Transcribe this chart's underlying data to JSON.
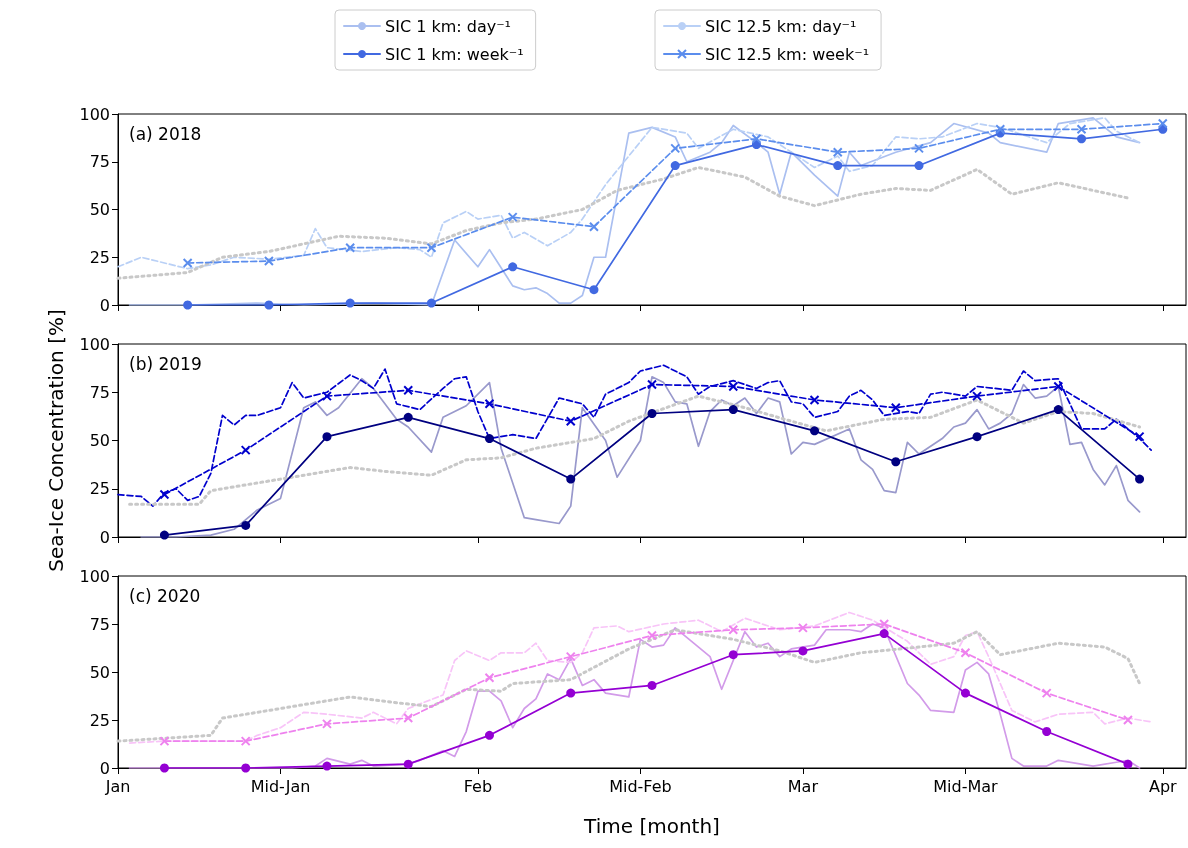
{
  "chart_data": [
    {
      "type": "line",
      "title": "(a) 2018",
      "legend": "top",
      "tick_labels": "y",
      "xlim": [
        "--01-01",
        "--04-03"
      ],
      "xticks": [
        {
          "value": "--01-01",
          "label": "Jan"
        },
        {
          "value": "--01-15",
          "label": "Mid-Jan"
        },
        {
          "value": "--02-01",
          "label": "Feb"
        },
        {
          "value": "--02-15",
          "label": "Mid-Feb"
        },
        {
          "value": "--03-01",
          "label": "Mar"
        },
        {
          "value": "--03-15",
          "label": "Mid-Mar"
        },
        {
          "value": "--04-01",
          "label": "Apr"
        }
      ],
      "ylim": [
        0,
        100
      ],
      "yticks": [
        0,
        25,
        50,
        75,
        100
      ],
      "series": [
        {
          "name": "SIC 1 km: day⁻¹",
          "color": "#aabff0",
          "line_style": "solid",
          "marker": "none",
          "x": [
            "--01-02",
            "--01-07",
            "--01-13",
            "--01-17",
            "--01-23",
            "--01-28",
            "--01-30",
            "--02-01",
            "--02-02",
            "--02-04",
            "--02-05",
            "--02-06",
            "--02-07",
            "--02-08",
            "--02-09",
            "--02-10",
            "--02-11",
            "--02-12",
            "--02-14",
            "--02-16",
            "--02-18",
            "--02-19",
            "--02-21",
            "--02-22",
            "--02-23",
            "--02-25",
            "--02-26",
            "--02-27",
            "--02-28",
            "--03-02",
            "--03-04",
            "--03-05",
            "--03-06",
            "--03-09",
            "--03-12",
            "--03-14",
            "--03-17",
            "--03-18",
            "--03-22",
            "--03-23",
            "--03-26",
            "--03-28",
            "--03-30"
          ],
          "values": [
            0,
            0,
            1,
            0,
            1,
            0,
            34,
            20,
            29,
            10,
            8,
            9,
            6,
            1,
            1,
            5,
            25,
            25,
            90,
            93,
            88,
            75,
            80,
            85,
            94,
            85,
            80,
            58,
            80,
            68,
            57,
            80,
            73,
            80,
            85,
            95,
            90,
            85,
            80,
            95,
            98,
            88,
            85
          ]
        },
        {
          "name": "SIC 1 km: week⁻¹",
          "color": "#4169e1",
          "line_style": "solid",
          "marker": "circle",
          "x": [
            "--01-07",
            "--01-14",
            "--01-21",
            "--01-28",
            "--02-04",
            "--02-11",
            "--02-18",
            "--02-25",
            "--03-04",
            "--03-11",
            "--03-18",
            "--03-25",
            "--04-01"
          ],
          "values": [
            0,
            0,
            1,
            1,
            20,
            8,
            73,
            84,
            73,
            73,
            90,
            87,
            92
          ]
        },
        {
          "name": "SIC 12.5 km: day⁻¹",
          "color": "#b9d0f6",
          "line_style": "dashed",
          "marker": "none",
          "x": [
            "--01-01",
            "--01-03",
            "--01-05",
            "--01-07",
            "--01-09",
            "--01-11",
            "--01-14",
            "--01-17",
            "--01-18",
            "--01-19",
            "--01-22",
            "--01-25",
            "--01-27",
            "--01-28",
            "--01-29",
            "--01-31",
            "--02-01",
            "--02-03",
            "--02-04",
            "--02-05",
            "--02-07",
            "--02-09",
            "--02-10",
            "--02-12",
            "--02-14",
            "--02-16",
            "--02-19",
            "--02-20",
            "--02-23",
            "--02-26",
            "--02-28",
            "--03-02",
            "--03-04",
            "--03-05",
            "--03-07",
            "--03-09",
            "--03-11",
            "--03-13",
            "--03-16",
            "--03-18",
            "--03-22",
            "--03-24",
            "--03-27",
            "--03-28",
            "--03-30"
          ],
          "values": [
            20,
            25,
            22,
            19,
            21,
            25,
            24,
            26,
            40,
            30,
            28,
            30,
            29,
            25,
            43,
            49,
            45,
            47,
            35,
            38,
            31,
            38,
            45,
            63,
            78,
            93,
            90,
            82,
            92,
            88,
            80,
            72,
            78,
            70,
            73,
            88,
            87,
            88,
            95,
            93,
            85,
            95,
            98,
            91,
            85
          ]
        },
        {
          "name": "SIC 12.5 km: week⁻¹",
          "color": "#5b8ded",
          "line_style": "dashed",
          "marker": "cross",
          "x": [
            "--01-07",
            "--01-14",
            "--01-21",
            "--01-28",
            "--02-04",
            "--02-11",
            "--02-18",
            "--02-25",
            "--03-04",
            "--03-11",
            "--03-18",
            "--03-25",
            "--04-01"
          ],
          "values": [
            22,
            23,
            30,
            30,
            46,
            41,
            82,
            87,
            80,
            82,
            92,
            92,
            95
          ]
        },
        {
          "color": "#c8c8c8",
          "line_style": "dotted",
          "marker": "none",
          "x": [
            "--01-01",
            "--01-07",
            "--01-10",
            "--01-14",
            "--01-20",
            "--01-24",
            "--01-28",
            "--01-31",
            "--02-03",
            "--02-06",
            "--02-10",
            "--02-13",
            "--02-17",
            "--02-20",
            "--02-24",
            "--02-27",
            "--03-02",
            "--03-06",
            "--03-09",
            "--03-12",
            "--03-16",
            "--03-19",
            "--03-23",
            "--03-29"
          ],
          "values": [
            14,
            17,
            25,
            28,
            36,
            35,
            32,
            39,
            43,
            45,
            50,
            60,
            66,
            72,
            67,
            57,
            52,
            58,
            61,
            60,
            71,
            58,
            64,
            56
          ]
        }
      ]
    },
    {
      "type": "line",
      "title": "(b) 2019",
      "ylabel": "Sea-Ice Concentration [%]",
      "tick_labels": "y",
      "xlim": [
        "--01-01",
        "--04-03"
      ],
      "xticks": [
        {
          "value": "--01-01",
          "label": "Jan"
        },
        {
          "value": "--01-15",
          "label": "Mid-Jan"
        },
        {
          "value": "--02-01",
          "label": "Feb"
        },
        {
          "value": "--02-15",
          "label": "Mid-Feb"
        },
        {
          "value": "--03-01",
          "label": "Mar"
        },
        {
          "value": "--03-15",
          "label": "Mid-Mar"
        },
        {
          "value": "--04-01",
          "label": "Apr"
        }
      ],
      "ylim": [
        0,
        100
      ],
      "yticks": [
        0,
        25,
        50,
        75,
        100
      ],
      "series": [
        {
          "color": "#9999cc",
          "line_style": "solid",
          "marker": "none",
          "x": [
            "--01-03",
            "--01-06",
            "--01-09",
            "--01-11",
            "--01-13",
            "--01-15",
            "--01-17",
            "--01-18",
            "--01-19",
            "--01-20",
            "--01-22",
            "--01-23",
            "--01-25",
            "--01-26",
            "--01-28",
            "--01-29",
            "--01-31",
            "--02-02",
            "--02-03",
            "--02-05",
            "--02-06",
            "--02-08",
            "--02-09",
            "--02-10",
            "--02-12",
            "--02-13",
            "--02-15",
            "--02-16",
            "--02-17",
            "--02-18",
            "--02-19",
            "--02-20",
            "--02-21",
            "--02-22",
            "--02-23",
            "--02-24",
            "--02-25",
            "--02-26",
            "--02-27",
            "--02-28",
            "--03-01",
            "--03-02",
            "--03-05",
            "--03-06",
            "--03-07",
            "--03-08",
            "--03-09",
            "--03-10",
            "--03-11",
            "--03-13",
            "--03-14",
            "--03-15",
            "--03-16",
            "--03-17",
            "--03-18",
            "--03-19",
            "--03-20",
            "--03-21",
            "--03-22",
            "--03-23",
            "--03-24",
            "--03-25",
            "--03-26",
            "--03-27",
            "--03-28",
            "--03-29",
            "--03-30"
          ],
          "values": [
            0,
            0,
            1,
            4,
            14,
            20,
            67,
            70,
            63,
            67,
            82,
            77,
            61,
            57,
            44,
            62,
            68,
            80,
            46,
            10,
            9,
            7,
            16,
            67,
            50,
            31,
            50,
            83,
            80,
            70,
            69,
            47,
            65,
            71,
            68,
            72,
            64,
            72,
            70,
            43,
            49,
            48,
            56,
            40,
            35,
            24,
            23,
            49,
            43,
            51,
            57,
            59,
            66,
            56,
            59,
            64,
            79,
            72,
            73,
            78,
            48,
            49,
            35,
            27,
            37,
            19,
            13
          ]
        },
        {
          "color": "#000080",
          "line_style": "solid",
          "marker": "circle",
          "x": [
            "--01-05",
            "--01-12",
            "--01-19",
            "--01-26",
            "--02-02",
            "--02-09",
            "--02-16",
            "--02-23",
            "--03-02",
            "--03-09",
            "--03-16",
            "--03-23",
            "--03-30"
          ],
          "values": [
            1,
            6,
            52,
            62,
            51,
            30,
            64,
            66,
            55,
            39,
            52,
            66,
            30
          ]
        },
        {
          "color": "#0000cd",
          "line_style": "dashed",
          "marker": "none",
          "x": [
            "--01-01",
            "--01-03",
            "--01-04",
            "--01-05",
            "--01-06",
            "--01-07",
            "--01-08",
            "--01-09",
            "--01-10",
            "--01-11",
            "--01-12",
            "--01-13",
            "--01-15",
            "--01-16",
            "--01-17",
            "--01-19",
            "--01-21",
            "--01-22",
            "--01-23",
            "--01-24",
            "--01-25",
            "--01-27",
            "--01-29",
            "--01-30",
            "--01-31",
            "--02-01",
            "--02-02",
            "--02-04",
            "--02-06",
            "--02-08",
            "--02-10",
            "--02-11",
            "--02-12",
            "--02-14",
            "--02-15",
            "--02-17",
            "--02-19",
            "--02-20",
            "--02-21",
            "--02-23",
            "--02-25",
            "--02-26",
            "--02-27",
            "--02-28",
            "--03-01",
            "--03-02",
            "--03-04",
            "--03-05",
            "--03-06",
            "--03-07",
            "--03-08",
            "--03-10",
            "--03-11",
            "--03-12",
            "--03-13",
            "--03-15",
            "--03-16",
            "--03-19",
            "--03-20",
            "--03-21",
            "--03-23",
            "--03-24",
            "--03-25",
            "--03-27",
            "--03-28",
            "--03-30",
            "--03-31"
          ],
          "values": [
            22,
            21,
            16,
            23,
            25,
            19,
            21,
            33,
            63,
            58,
            63,
            63,
            67,
            80,
            72,
            75,
            84,
            81,
            77,
            87,
            69,
            66,
            77,
            82,
            83,
            65,
            51,
            53,
            51,
            72,
            69,
            62,
            74,
            80,
            86,
            89,
            83,
            74,
            78,
            81,
            77,
            80,
            81,
            70,
            69,
            62,
            65,
            73,
            76,
            71,
            63,
            65,
            64,
            74,
            75,
            73,
            78,
            76,
            86,
            81,
            82,
            69,
            56,
            56,
            61,
            51,
            45
          ]
        },
        {
          "color": "#0000cd",
          "line_style": "dashed",
          "marker": "cross",
          "x": [
            "--01-05",
            "--01-12",
            "--01-19",
            "--01-26",
            "--02-02",
            "--02-09",
            "--02-16",
            "--02-23",
            "--03-02",
            "--03-09",
            "--03-16",
            "--03-23",
            "--03-30"
          ],
          "values": [
            22,
            45,
            73,
            76,
            69,
            60,
            79,
            78,
            71,
            67,
            73,
            78,
            52
          ]
        },
        {
          "color": "#c8c8c8",
          "line_style": "dotted",
          "marker": "none",
          "x": [
            "--01-02",
            "--01-08",
            "--01-09",
            "--01-12",
            "--01-16",
            "--01-21",
            "--01-24",
            "--01-28",
            "--01-31",
            "--02-03",
            "--02-06",
            "--02-11",
            "--02-14",
            "--02-20",
            "--02-24",
            "--02-28",
            "--03-03",
            "--03-08",
            "--03-12",
            "--03-16",
            "--03-20",
            "--03-23",
            "--03-26",
            "--03-30"
          ],
          "values": [
            17,
            17,
            24,
            27,
            31,
            36,
            34,
            32,
            40,
            41,
            46,
            51,
            60,
            73,
            67,
            60,
            55,
            61,
            62,
            71,
            59,
            65,
            64,
            57
          ]
        }
      ]
    },
    {
      "type": "line",
      "title": "(c) 2020",
      "xlabel": "Time [month]",
      "xlim": [
        "--01-01",
        "--04-03"
      ],
      "xticks": [
        {
          "value": "--01-01",
          "label": "Jan"
        },
        {
          "value": "--01-15",
          "label": "Mid-Jan"
        },
        {
          "value": "--02-01",
          "label": "Feb"
        },
        {
          "value": "--02-15",
          "label": "Mid-Feb"
        },
        {
          "value": "--03-01",
          "label": "Mar"
        },
        {
          "value": "--03-15",
          "label": "Mid-Mar"
        },
        {
          "value": "--04-01",
          "label": "Apr"
        }
      ],
      "ylim": [
        0,
        100
      ],
      "yticks": [
        0,
        25,
        50,
        75,
        100
      ],
      "series": [
        {
          "color": "#d29be9",
          "line_style": "solid",
          "marker": "none",
          "x": [
            "--01-02",
            "--01-09",
            "--01-16",
            "--01-18",
            "--01-19",
            "--01-21",
            "--01-22",
            "--01-23",
            "--01-26",
            "--01-27",
            "--01-29",
            "--01-30",
            "--01-31",
            "--02-01",
            "--02-02",
            "--02-03",
            "--02-04",
            "--02-05",
            "--02-06",
            "--02-07",
            "--02-08",
            "--02-09",
            "--02-10",
            "--02-11",
            "--02-12",
            "--02-14",
            "--02-15",
            "--02-16",
            "--02-17",
            "--02-18",
            "--02-21",
            "--02-22",
            "--02-24",
            "--02-25",
            "--02-26",
            "--02-27",
            "--02-28",
            "--03-02",
            "--03-03",
            "--03-05",
            "--03-06",
            "--03-07",
            "--03-08",
            "--03-10",
            "--03-11",
            "--03-12",
            "--03-14",
            "--03-15",
            "--03-16",
            "--03-17",
            "--03-18",
            "--03-19",
            "--03-20",
            "--03-22",
            "--03-23",
            "--03-26",
            "--03-28",
            "--03-29",
            "--03-30"
          ],
          "values": [
            0,
            0,
            0,
            1,
            5,
            2,
            4,
            1,
            2,
            4,
            9,
            6,
            19,
            40,
            40,
            35,
            21,
            31,
            36,
            49,
            46,
            57,
            43,
            46,
            39,
            37,
            67,
            63,
            64,
            73,
            58,
            41,
            71,
            63,
            65,
            58,
            62,
            64,
            72,
            72,
            71,
            75,
            73,
            44,
            38,
            30,
            29,
            51,
            55,
            49,
            28,
            5,
            1,
            1,
            4,
            1,
            3,
            4,
            0
          ]
        },
        {
          "color": "#9400d3",
          "line_style": "solid",
          "marker": "circle",
          "x": [
            "--01-05",
            "--01-12",
            "--01-19",
            "--01-26",
            "--02-02",
            "--02-09",
            "--02-16",
            "--02-23",
            "--03-01",
            "--03-08",
            "--03-15",
            "--03-22",
            "--03-29"
          ],
          "values": [
            0,
            0,
            1,
            2,
            17,
            39,
            43,
            59,
            61,
            70,
            39,
            19,
            2
          ]
        },
        {
          "color": "#f8c4f8",
          "line_style": "dashed",
          "marker": "none",
          "x": [
            "--01-02",
            "--01-05",
            "--01-12",
            "--01-13",
            "--01-15",
            "--01-17",
            "--01-19",
            "--01-22",
            "--01-23",
            "--01-25",
            "--01-26",
            "--01-29",
            "--01-30",
            "--01-31",
            "--02-02",
            "--02-03",
            "--02-05",
            "--02-06",
            "--02-07",
            "--02-09",
            "--02-10",
            "--02-11",
            "--02-13",
            "--02-14",
            "--02-17",
            "--02-20",
            "--02-22",
            "--02-24",
            "--02-27",
            "--03-02",
            "--03-05",
            "--03-07",
            "--03-10",
            "--03-12",
            "--03-14",
            "--03-15",
            "--03-16",
            "--03-17",
            "--03-19",
            "--03-21",
            "--03-23",
            "--03-26",
            "--03-27",
            "--03-29",
            "--03-31"
          ],
          "values": [
            13,
            14,
            14,
            17,
            21,
            29,
            28,
            26,
            29,
            23,
            31,
            38,
            56,
            61,
            56,
            60,
            60,
            65,
            56,
            55,
            60,
            73,
            74,
            71,
            75,
            77,
            71,
            78,
            72,
            74,
            81,
            77,
            66,
            54,
            58,
            69,
            71,
            58,
            30,
            24,
            28,
            29,
            23,
            26,
            24
          ]
        },
        {
          "color": "#ee82ee",
          "line_style": "dashed",
          "marker": "cross",
          "x": [
            "--01-05",
            "--01-12",
            "--01-19",
            "--01-26",
            "--02-02",
            "--02-09",
            "--02-16",
            "--02-23",
            "--03-01",
            "--03-08",
            "--03-15",
            "--03-22",
            "--03-29"
          ],
          "values": [
            14,
            14,
            23,
            26,
            47,
            58,
            69,
            72,
            73,
            75,
            60,
            39,
            25
          ]
        },
        {
          "color": "#c8c8c8",
          "line_style": "dotted",
          "marker": "none",
          "x": [
            "--01-01",
            "--01-09",
            "--01-10",
            "--01-14",
            "--01-21",
            "--01-25",
            "--01-28",
            "--01-31",
            "--02-03",
            "--02-04",
            "--02-09",
            "--02-14",
            "--02-18",
            "--02-23",
            "--02-27",
            "--03-02",
            "--03-06",
            "--03-11",
            "--03-14",
            "--03-16",
            "--03-18",
            "--03-23",
            "--03-27",
            "--03-29",
            "--03-30"
          ],
          "values": [
            14,
            17,
            26,
            30,
            37,
            34,
            32,
            41,
            40,
            44,
            46,
            62,
            72,
            67,
            61,
            55,
            60,
            63,
            65,
            71,
            59,
            65,
            63,
            57,
            44
          ]
        }
      ]
    }
  ]
}
